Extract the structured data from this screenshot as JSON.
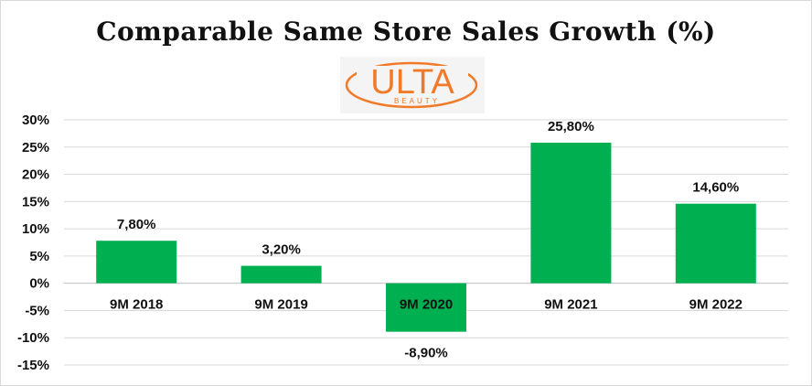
{
  "chart_data": {
    "type": "bar",
    "title": "Comparable Same Store Sales Growth (%)",
    "categories": [
      "9M 2018",
      "9M 2019",
      "9M 2020",
      "9M 2021",
      "9M 2022"
    ],
    "values": [
      7.8,
      3.2,
      -8.9,
      25.8,
      14.6
    ],
    "data_labels": [
      "7,80%",
      "3,20%",
      "-8,90%",
      "25,80%",
      "14,60%"
    ],
    "ylim": [
      -15,
      30
    ],
    "yticks": [
      30,
      25,
      20,
      15,
      10,
      5,
      0,
      -5,
      -10,
      -15
    ],
    "ytick_labels": [
      "30%",
      "25%",
      "20%",
      "15%",
      "10%",
      "5%",
      "0%",
      "-5%",
      "-10%",
      "-15%"
    ],
    "grid": true,
    "bar_color": "#00b050",
    "logo": {
      "brand": "ULTA",
      "sub": "BEAUTY",
      "color": "#f07a28"
    }
  }
}
